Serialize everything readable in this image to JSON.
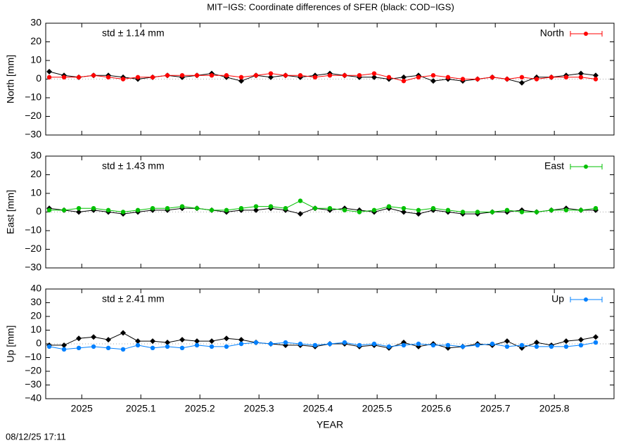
{
  "title": "MIT−IGS: Coordinate differences of SFER (black: COD−IGS)",
  "timestamp": "08/12/25 17:11",
  "chart_data": [
    {
      "type": "line",
      "ylabel": "North [mm]",
      "annotation": "std ± 1.14 mm",
      "xlim": [
        2024.939,
        2025.901
      ],
      "xticks": [
        2025,
        2025.1,
        2025.2,
        2025.3,
        2025.4,
        2025.5,
        2025.6,
        2025.7,
        2025.8
      ],
      "ylim": [
        -30,
        30
      ],
      "yticks": [
        {
          "value": -30,
          "label": "−30"
        },
        {
          "value": -20,
          "label": "−20"
        },
        {
          "value": -10,
          "label": "−10"
        },
        0,
        10,
        20,
        30
      ],
      "legend": "upper right",
      "x": [
        2024.945,
        2024.97,
        2024.995,
        2025.02,
        2025.045,
        2025.07,
        2025.095,
        2025.12,
        2025.145,
        2025.17,
        2025.195,
        2025.22,
        2025.245,
        2025.27,
        2025.295,
        2025.32,
        2025.345,
        2025.37,
        2025.395,
        2025.42,
        2025.445,
        2025.47,
        2025.495,
        2025.52,
        2025.545,
        2025.57,
        2025.595,
        2025.62,
        2025.645,
        2025.67,
        2025.695,
        2025.72,
        2025.745,
        2025.77,
        2025.795,
        2025.82,
        2025.845,
        2025.87
      ],
      "series": [
        {
          "color": "#000000",
          "values": [
            4,
            2,
            1,
            2,
            2,
            1,
            0,
            1,
            2,
            1,
            2,
            3,
            1,
            -1,
            2,
            1,
            2,
            1,
            2,
            3,
            2,
            1,
            1,
            0,
            1,
            2,
            -1,
            0,
            -1,
            0,
            1,
            0,
            -2,
            1,
            1,
            2,
            3,
            2
          ]
        },
        {
          "name": "North",
          "color": "#ff0000",
          "values": [
            1,
            1,
            1,
            2,
            1,
            0,
            1,
            1,
            2,
            2,
            2,
            2,
            2,
            1,
            2,
            3,
            2,
            2,
            1,
            2,
            2,
            2,
            3,
            1,
            -1,
            1,
            2,
            1,
            0,
            0,
            1,
            0,
            1,
            0,
            1,
            1,
            1,
            0
          ]
        }
      ]
    },
    {
      "type": "line",
      "ylabel": "East [mm]",
      "annotation": "std ± 1.43 mm",
      "xlim": [
        2024.939,
        2025.901
      ],
      "xticks": [
        2025,
        2025.1,
        2025.2,
        2025.3,
        2025.4,
        2025.5,
        2025.6,
        2025.7,
        2025.8
      ],
      "ylim": [
        -30,
        30
      ],
      "yticks": [
        {
          "value": -30,
          "label": "−30"
        },
        {
          "value": -20,
          "label": "−20"
        },
        {
          "value": -10,
          "label": "−10"
        },
        0,
        10,
        20,
        30
      ],
      "legend": "upper right",
      "x": [
        2024.945,
        2024.97,
        2024.995,
        2025.02,
        2025.045,
        2025.07,
        2025.095,
        2025.12,
        2025.145,
        2025.17,
        2025.195,
        2025.22,
        2025.245,
        2025.27,
        2025.295,
        2025.32,
        2025.345,
        2025.37,
        2025.395,
        2025.42,
        2025.445,
        2025.47,
        2025.495,
        2025.52,
        2025.545,
        2025.57,
        2025.595,
        2025.62,
        2025.645,
        2025.67,
        2025.695,
        2025.72,
        2025.745,
        2025.77,
        2025.795,
        2025.82,
        2025.845,
        2025.87
      ],
      "series": [
        {
          "color": "#000000",
          "values": [
            2,
            1,
            0,
            1,
            0,
            -1,
            0,
            1,
            1,
            2,
            2,
            1,
            0,
            1,
            1,
            2,
            1,
            -1,
            2,
            1,
            2,
            1,
            0,
            2,
            0,
            -1,
            1,
            0,
            -1,
            -1,
            0,
            0,
            1,
            0,
            1,
            2,
            1,
            1
          ]
        },
        {
          "name": "East",
          "color": "#00c000",
          "values": [
            1,
            1,
            2,
            2,
            1,
            0,
            1,
            2,
            2,
            3,
            2,
            1,
            1,
            2,
            3,
            3,
            2,
            6,
            2,
            2,
            1,
            0,
            1,
            3,
            2,
            1,
            2,
            1,
            0,
            0,
            0,
            1,
            0,
            0,
            1,
            1,
            1,
            2
          ]
        }
      ]
    },
    {
      "type": "line",
      "ylabel": "Up [mm]",
      "xlabel": "YEAR",
      "annotation": "std ± 2.41 mm",
      "xlim": [
        2024.939,
        2025.901
      ],
      "xticks": [
        2025,
        2025.1,
        2025.2,
        2025.3,
        2025.4,
        2025.5,
        2025.6,
        2025.7,
        2025.8
      ],
      "ylim": [
        -40,
        40
      ],
      "yticks": [
        {
          "value": -40,
          "label": "−40"
        },
        {
          "value": -30,
          "label": "−30"
        },
        {
          "value": -20,
          "label": "−20"
        },
        {
          "value": -10,
          "label": "−10"
        },
        0,
        10,
        20,
        30,
        40
      ],
      "legend": "upper right",
      "x": [
        2024.945,
        2024.97,
        2024.995,
        2025.02,
        2025.045,
        2025.07,
        2025.095,
        2025.12,
        2025.145,
        2025.17,
        2025.195,
        2025.22,
        2025.245,
        2025.27,
        2025.295,
        2025.32,
        2025.345,
        2025.37,
        2025.395,
        2025.42,
        2025.445,
        2025.47,
        2025.495,
        2025.52,
        2025.545,
        2025.57,
        2025.595,
        2025.62,
        2025.645,
        2025.67,
        2025.695,
        2025.72,
        2025.745,
        2025.77,
        2025.795,
        2025.82,
        2025.845,
        2025.87
      ],
      "series": [
        {
          "color": "#000000",
          "values": [
            -1,
            -1,
            4,
            5,
            3,
            8,
            2,
            2,
            1,
            3,
            2,
            2,
            4,
            3,
            1,
            0,
            -1,
            -1,
            -2,
            0,
            0,
            -2,
            -1,
            -3,
            1,
            -2,
            0,
            -3,
            -2,
            0,
            -1,
            2,
            -3,
            1,
            -1,
            2,
            3,
            5
          ]
        },
        {
          "name": "Up",
          "color": "#0080ff",
          "values": [
            -2,
            -4,
            -3,
            -2,
            -3,
            -4,
            -1,
            -3,
            -2,
            -3,
            -1,
            -2,
            -2,
            0,
            1,
            0,
            1,
            0,
            -1,
            0,
            1,
            -1,
            0,
            -2,
            -1,
            0,
            -1,
            -1,
            -2,
            -1,
            0,
            -2,
            -1,
            -2,
            -2,
            -2,
            -1,
            1
          ]
        }
      ]
    }
  ]
}
